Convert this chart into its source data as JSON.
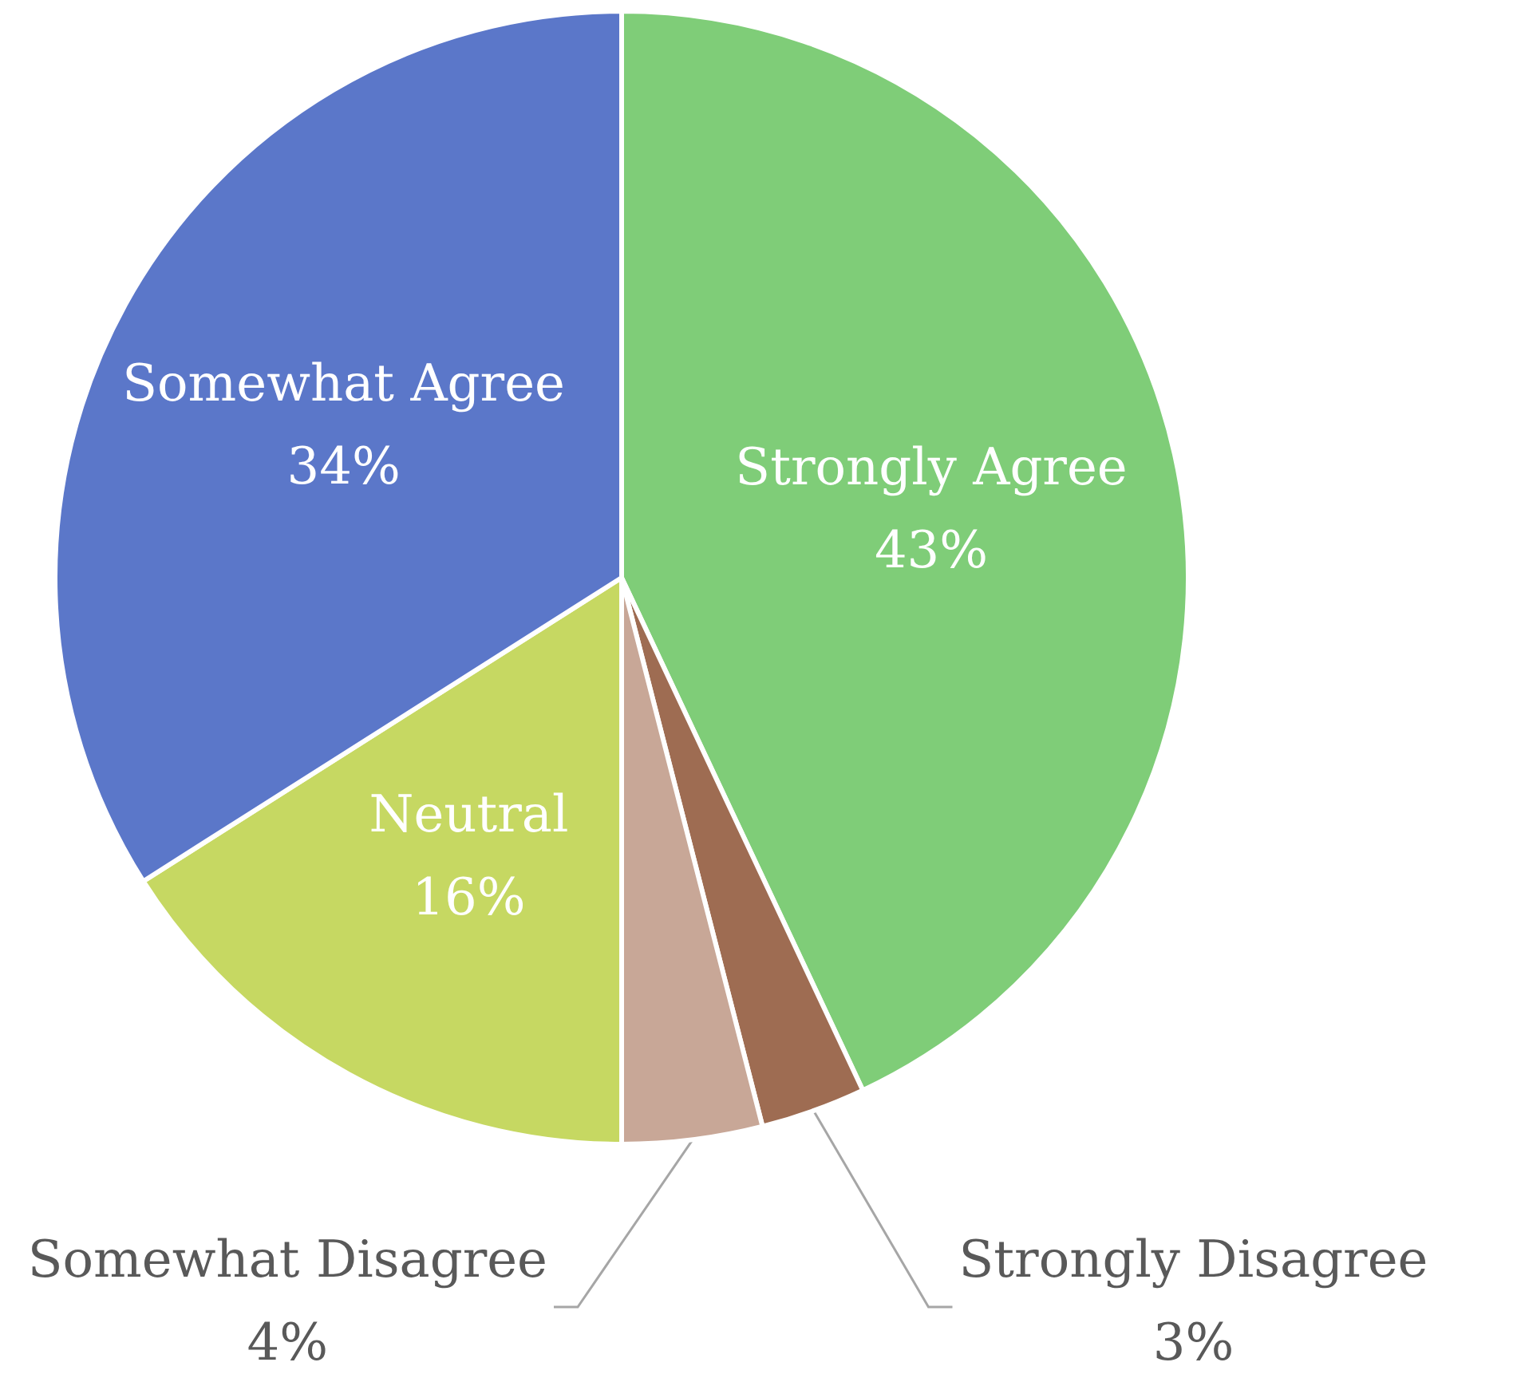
{
  "chart_data": {
    "type": "pie",
    "categories": [
      "Strongly Agree",
      "Strongly Disagree",
      "Somewhat Disagree",
      "Neutral",
      "Somewhat Agree"
    ],
    "values": [
      43,
      3,
      4,
      16,
      34
    ],
    "colors": [
      "#7fcd78",
      "#9e6c52",
      "#c8a797",
      "#c6d862",
      "#5b77c9"
    ],
    "value_labels": [
      "43%",
      "3%",
      "4%",
      "16%",
      "34%"
    ]
  }
}
